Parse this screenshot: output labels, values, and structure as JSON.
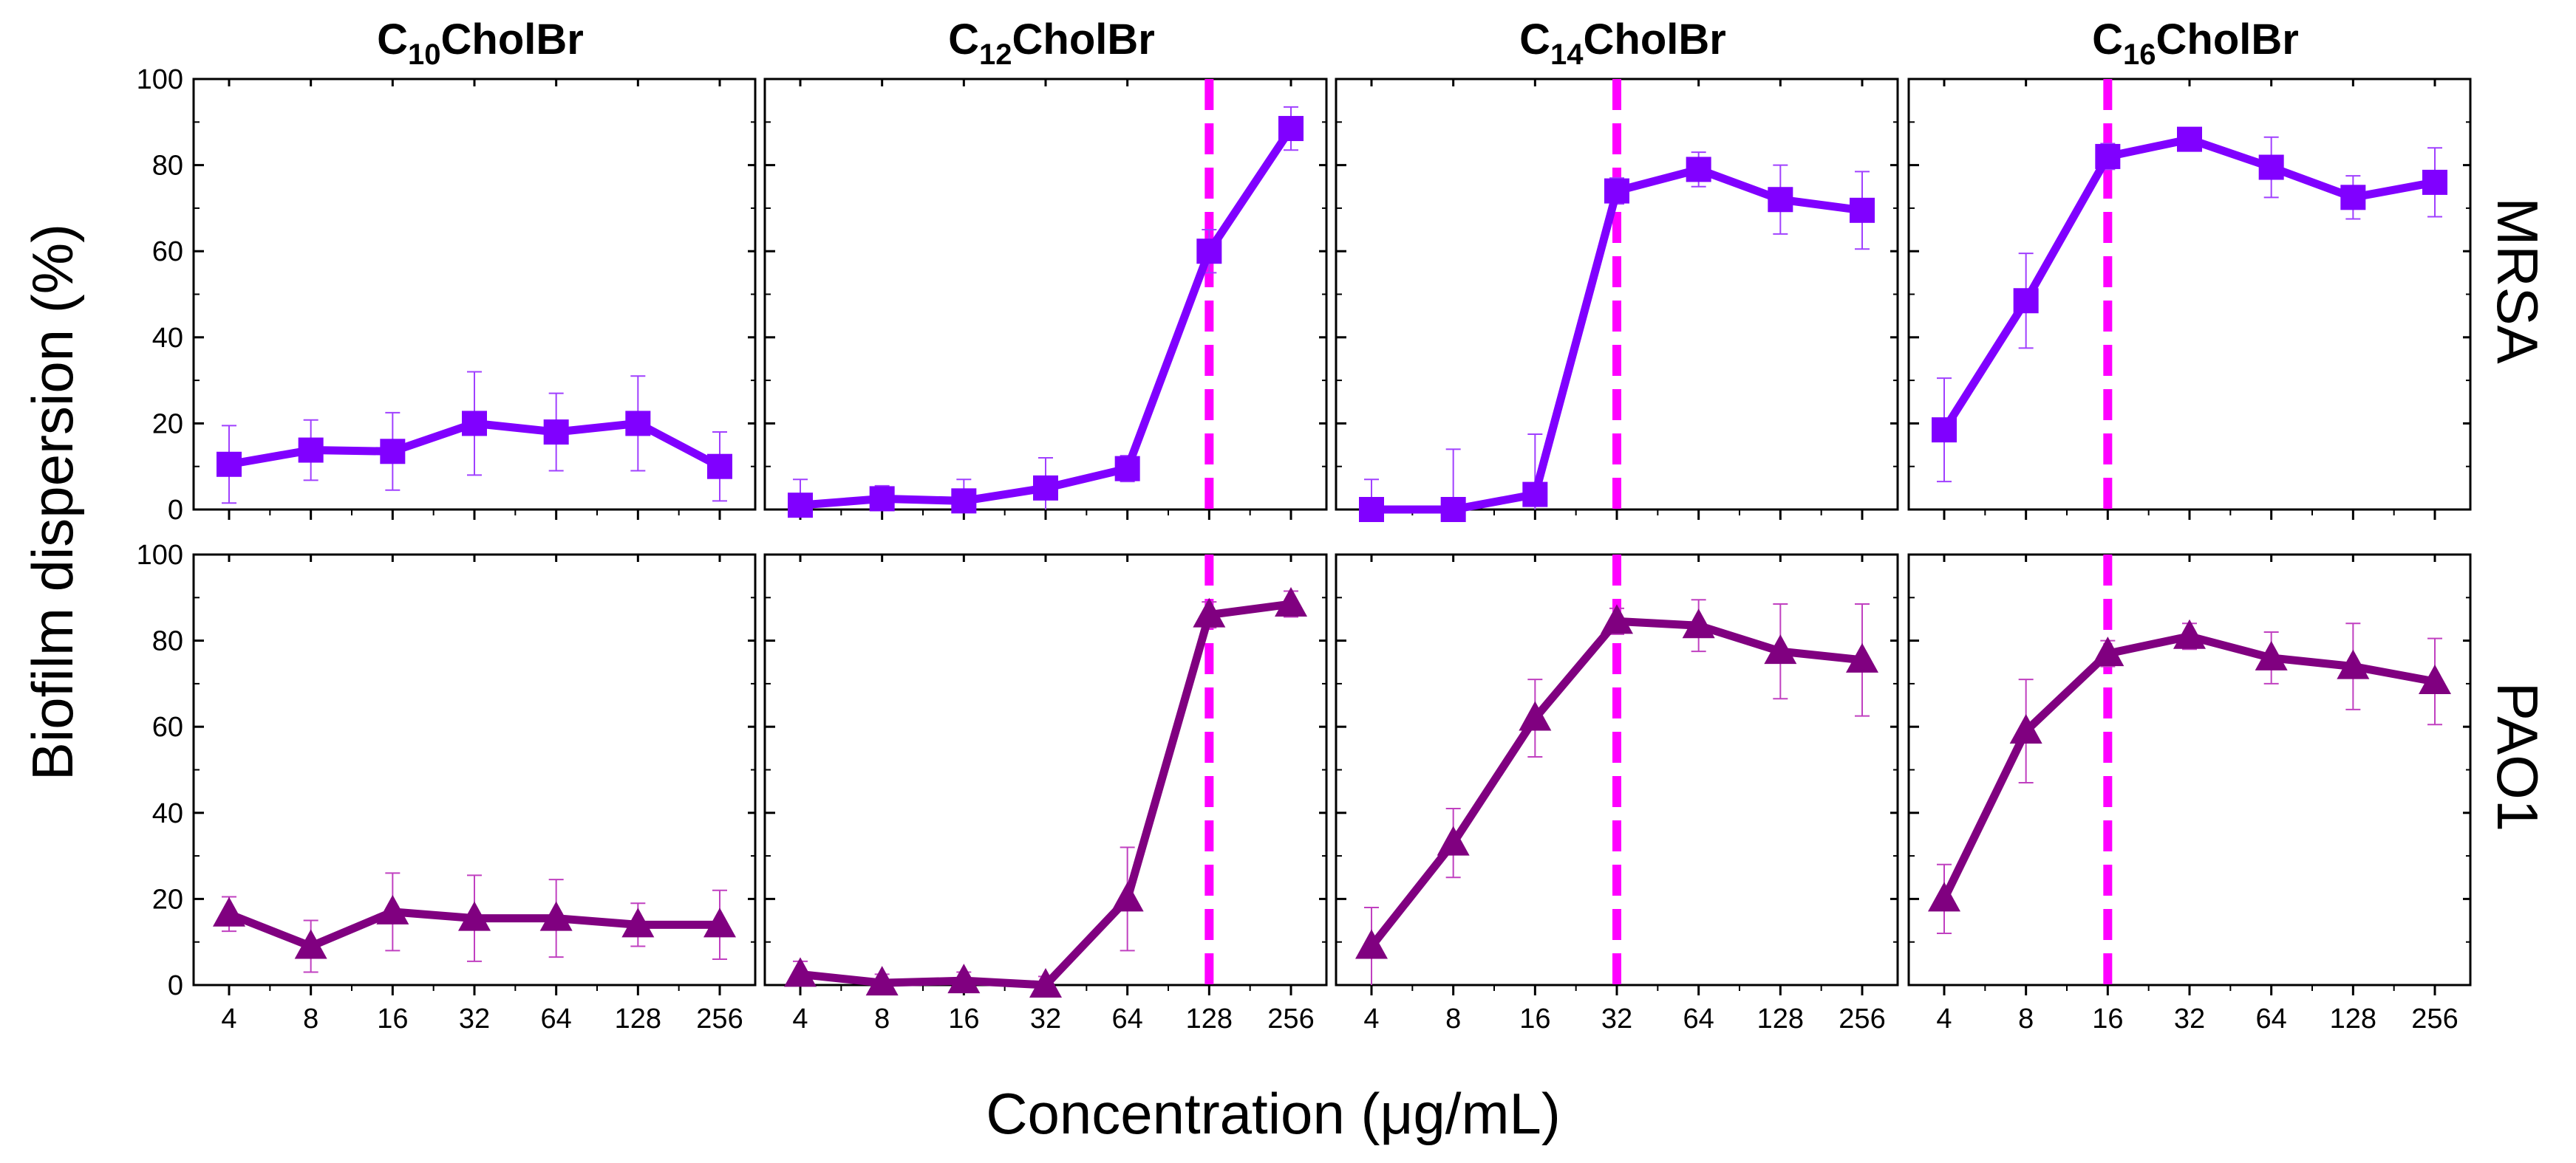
{
  "figure": {
    "ylabel": "Biofilm dispersion (%)",
    "xlabel": "Concentration (μg/mL)",
    "row_labels": [
      "MRSA",
      "PAO1"
    ],
    "columns": [
      {
        "prefix": "C",
        "subscript": "10",
        "suffix": "CholBr"
      },
      {
        "prefix": "C",
        "subscript": "12",
        "suffix": "CholBr"
      },
      {
        "prefix": "C",
        "subscript": "14",
        "suffix": "CholBr"
      },
      {
        "prefix": "C",
        "subscript": "16",
        "suffix": "CholBr"
      }
    ],
    "colors": {
      "mrsa": "#8000ff",
      "pao1": "#800080",
      "threshold": "#ff00ff",
      "errorbar_mrsa": "#a040ff",
      "errorbar_pao1": "#c040c0"
    }
  },
  "chart_data": [
    {
      "type": "line",
      "title": "C10CholBr",
      "organism": "MRSA",
      "marker": "square",
      "x": [
        "4",
        "8",
        "16",
        "32",
        "64",
        "128",
        "256"
      ],
      "values": [
        10.5,
        13.8,
        13.5,
        20,
        18,
        20,
        10
      ],
      "errors": [
        9,
        7,
        9,
        12,
        9,
        11,
        8
      ],
      "threshold": null,
      "ylim": [
        0,
        100
      ],
      "yticks": [
        0,
        20,
        40,
        60,
        80,
        100
      ]
    },
    {
      "type": "line",
      "title": "C12CholBr",
      "organism": "MRSA",
      "marker": "square",
      "x": [
        "4",
        "8",
        "16",
        "32",
        "64",
        "128",
        "256"
      ],
      "values": [
        1,
        2.5,
        2,
        5,
        9.5,
        60,
        88.5
      ],
      "errors": [
        6,
        3,
        5,
        7,
        3,
        5,
        5
      ],
      "threshold": "128",
      "ylim": [
        0,
        100
      ],
      "yticks": [
        0,
        20,
        40,
        60,
        80,
        100
      ]
    },
    {
      "type": "line",
      "title": "C14CholBr",
      "organism": "MRSA",
      "marker": "square",
      "x": [
        "4",
        "8",
        "16",
        "32",
        "64",
        "128",
        "256"
      ],
      "values": [
        0,
        0,
        3.5,
        74,
        79,
        72,
        69.5
      ],
      "errors": [
        7,
        14,
        14,
        3,
        4,
        8,
        9
      ],
      "threshold": "32",
      "ylim": [
        0,
        100
      ],
      "yticks": [
        0,
        20,
        40,
        60,
        80,
        100
      ]
    },
    {
      "type": "line",
      "title": "C16CholBr",
      "organism": "MRSA",
      "marker": "square",
      "x": [
        "4",
        "8",
        "16",
        "32",
        "64",
        "128",
        "256"
      ],
      "values": [
        18.5,
        48.5,
        82,
        86,
        79.5,
        72.5,
        76
      ],
      "errors": [
        12,
        11,
        3,
        2,
        7,
        5,
        8
      ],
      "threshold": "16",
      "ylim": [
        0,
        100
      ],
      "yticks": [
        0,
        20,
        40,
        60,
        80,
        100
      ]
    },
    {
      "type": "line",
      "title": "C10CholBr",
      "organism": "PAO1",
      "marker": "triangle",
      "x": [
        "4",
        "8",
        "16",
        "32",
        "64",
        "128",
        "256"
      ],
      "values": [
        16.5,
        9,
        17,
        15.5,
        15.5,
        14,
        14
      ],
      "errors": [
        4,
        6,
        9,
        10,
        9,
        5,
        8
      ],
      "threshold": null,
      "ylim": [
        0,
        100
      ],
      "yticks": [
        0,
        20,
        40,
        60,
        80,
        100
      ]
    },
    {
      "type": "line",
      "title": "C12CholBr",
      "organism": "PAO1",
      "marker": "triangle",
      "x": [
        "4",
        "8",
        "16",
        "32",
        "64",
        "128",
        "256"
      ],
      "values": [
        2.5,
        0.5,
        1,
        0,
        20,
        86,
        88.5
      ],
      "errors": [
        3,
        2,
        2,
        2,
        12,
        3,
        3
      ],
      "threshold": "128",
      "ylim": [
        0,
        100
      ],
      "yticks": [
        0,
        20,
        40,
        60,
        80,
        100
      ]
    },
    {
      "type": "line",
      "title": "C14CholBr",
      "organism": "PAO1",
      "marker": "triangle",
      "x": [
        "4",
        "8",
        "16",
        "32",
        "64",
        "128",
        "256"
      ],
      "values": [
        9,
        33,
        62,
        84.5,
        83.5,
        77.5,
        75.5
      ],
      "errors": [
        9,
        8,
        9,
        3,
        6,
        11,
        13
      ],
      "threshold": "32",
      "ylim": [
        0,
        100
      ],
      "yticks": [
        0,
        20,
        40,
        60,
        80,
        100
      ]
    },
    {
      "type": "line",
      "title": "C16CholBr",
      "organism": "PAO1",
      "marker": "triangle",
      "x": [
        "4",
        "8",
        "16",
        "32",
        "64",
        "128",
        "256"
      ],
      "values": [
        20,
        59,
        77,
        81,
        76,
        74,
        70.5
      ],
      "errors": [
        8,
        12,
        3,
        3,
        6,
        10,
        10
      ],
      "threshold": "16",
      "ylim": [
        0,
        100
      ],
      "yticks": [
        0,
        20,
        40,
        60,
        80,
        100
      ]
    }
  ]
}
